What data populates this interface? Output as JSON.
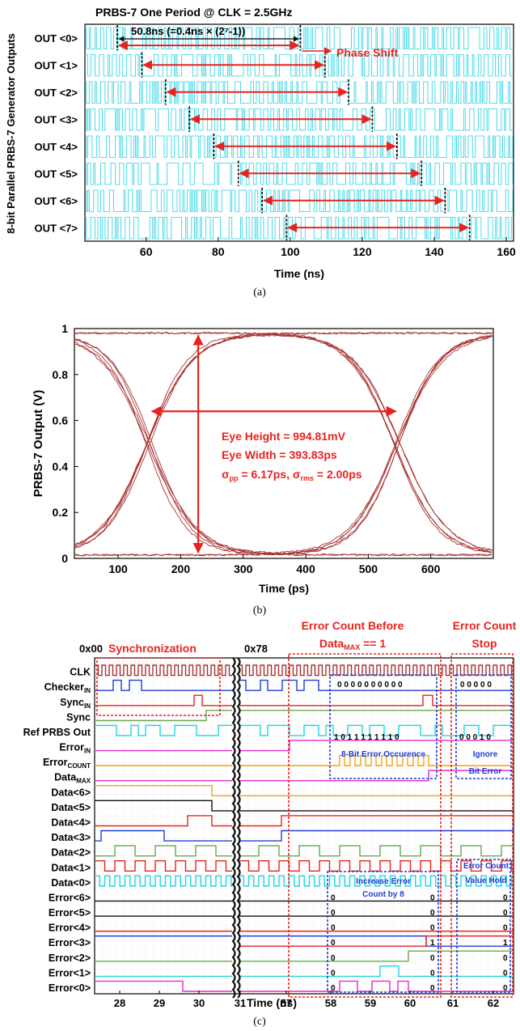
{
  "panel_a": {
    "caption": "(a)",
    "title": "PRBS-7 One Period @ CLK = 2.5GHz",
    "ylabel": "8-bit Parallel PRBS-7 Generator Outputs",
    "xlabel": "Time (ns)",
    "period_note": "50.8ns (=0.4ns × (2⁷-1))",
    "phase_shift_label": "Phase Shift",
    "colors": {
      "trace": "#22d3e6",
      "arrow": "#e8231f",
      "marker": "#000000"
    },
    "chart_data": {
      "type": "line",
      "xlim": [
        43,
        162
      ],
      "xticks": [
        60,
        80,
        100,
        120,
        140,
        160
      ],
      "channels": [
        "OUT <0>",
        "OUT <1>",
        "OUT <2>",
        "OUT <3>",
        "OUT <4>",
        "OUT <5>",
        "OUT <6>",
        "OUT <7>"
      ],
      "period_start_ns": [
        52.0,
        58.8,
        65.4,
        72.0,
        78.8,
        85.6,
        92.2,
        99.0
      ],
      "period_ns": 50.8
    }
  },
  "panel_b": {
    "caption": "(b)",
    "xlabel": "Time (ps)",
    "ylabel": "PRBS-7 Output (V)",
    "annotations": [
      "Eye Height = 994.81mV",
      "Eye Width = 393.83ps"
    ],
    "jitter": {
      "pp_prefix": "σ",
      "pp_sub": "pp",
      "pp_value": " = 6.17ps, ",
      "rms_prefix": "σ",
      "rms_sub": "rms",
      "rms_value": " = 2.00ps"
    },
    "colors": {
      "eye": "#a83232",
      "arrow": "#e8231f",
      "text": "#e8231f"
    },
    "chart_data": {
      "type": "line",
      "xlim": [
        30,
        700
      ],
      "ylim": [
        0,
        1
      ],
      "xticks": [
        100,
        200,
        300,
        400,
        500,
        600
      ],
      "yticks": [
        0,
        0.2,
        0.4,
        0.6,
        0.8,
        1
      ],
      "low_level_V": 0.015,
      "high_level_V": 0.98,
      "crossing_ps": [
        150,
        548
      ],
      "crossing_V": 0.64,
      "eye_height_V": 0.99481,
      "eye_width_ps": 393.83,
      "sigma_pp_ps": 6.17,
      "sigma_rms_ps": 2.0
    }
  },
  "panel_c": {
    "caption": "(c)",
    "xlabel": "Time (ns)",
    "xticks": [
      "28",
      "29",
      "30",
      "31",
      "57",
      "58",
      "59",
      "60",
      "61",
      "62"
    ],
    "hex_left": "0x00",
    "hex_right": "0x78",
    "box_titles": {
      "sync": "Synchronization",
      "before_1": "Error Count Before",
      "before_2_main": "Data",
      "before_2_sub": "MAX",
      "before_2_tail": " == 1",
      "stop_1": "Error Count",
      "stop_2": "Stop"
    },
    "notes": {
      "error_occurrence": "8-Bit Error Occurence",
      "ignore_1": "Ignore",
      "ignore_2": "Bit Error",
      "increase_1": "Increase Error",
      "increase_2": "Count by 8",
      "hold_1": "Error Count",
      "hold_2": "Value Hold"
    },
    "bit_strings": {
      "checker_mid": "0 0 0 0 0 0 0 0 0 0",
      "checker_right": "0 0 0 0 0",
      "ref_mid": "1 0 1 1 1 1 1 1 1 0",
      "ref_right": "0 0 0 1 0"
    },
    "signal_labels": [
      {
        "main": "CLK",
        "sub": ""
      },
      {
        "main": "Checker",
        "sub": "IN"
      },
      {
        "main": "Sync",
        "sub": "IN"
      },
      {
        "main": "Sync",
        "sub": ""
      },
      {
        "main": "Ref PRBS Out",
        "sub": ""
      },
      {
        "main": "Error",
        "sub": "IN"
      },
      {
        "main": "Error",
        "sub": "COUNT"
      },
      {
        "main": "Data",
        "sub": "MAX"
      },
      {
        "main": "Data<6>",
        "sub": ""
      },
      {
        "main": "Data<5>",
        "sub": ""
      },
      {
        "main": "Data<4>",
        "sub": ""
      },
      {
        "main": "Data<3>",
        "sub": ""
      },
      {
        "main": "Data<2>",
        "sub": ""
      },
      {
        "main": "Data<1>",
        "sub": ""
      },
      {
        "main": "Data<0>",
        "sub": ""
      },
      {
        "main": "Error<6>",
        "sub": ""
      },
      {
        "main": "Error<5>",
        "sub": ""
      },
      {
        "main": "Error<4>",
        "sub": ""
      },
      {
        "main": "Error<3>",
        "sub": ""
      },
      {
        "main": "Error<2>",
        "sub": ""
      },
      {
        "main": "Error<1>",
        "sub": ""
      },
      {
        "main": "Error<0>",
        "sub": ""
      }
    ],
    "error_bits_mid": [
      "0",
      "0",
      "0",
      "0",
      "0",
      "0",
      "0"
    ],
    "error_bits_mid_end": [
      "0",
      "0",
      "0",
      "1",
      "0",
      "0",
      "0"
    ],
    "error_bits_right": [
      "0",
      "0",
      "0",
      "1",
      "0",
      "0",
      "0"
    ],
    "colors": {
      "red": "#e8231f",
      "blue": "#1f3fd6",
      "cyan": "#22d3e6",
      "magenta": "#e62ad0",
      "orange": "#f2a516",
      "green": "#6aa84f",
      "black": "#111111",
      "clk": "#a83232"
    }
  }
}
